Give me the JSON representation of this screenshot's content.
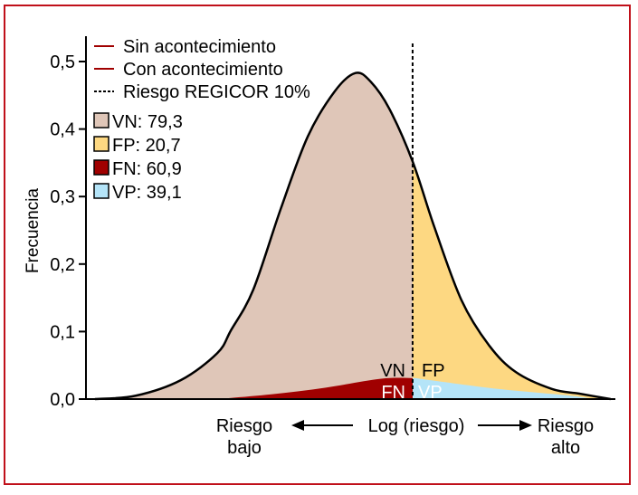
{
  "chart_data": {
    "type": "area",
    "ylabel": "Frecuencia",
    "ylim": [
      0,
      0.5
    ],
    "xlim": [
      0,
      100
    ],
    "yticks": [
      "0,0",
      "0,1",
      "0,2",
      "0,3",
      "0,4",
      "0,5"
    ],
    "ytick_values": [
      0,
      0.1,
      0.2,
      0.3,
      0.4,
      0.5
    ],
    "threshold_x": 61.7,
    "x_axis_labels": {
      "left": [
        "Riesgo",
        "bajo"
      ],
      "center": "Log (riesgo)",
      "right": [
        "Riesgo",
        "alto"
      ]
    },
    "legend_lines": [
      {
        "label": "Sin acontecimiento",
        "style": "solid",
        "color": "#a00000"
      },
      {
        "label": "Con acontecimiento",
        "style": "solid",
        "color": "#a00000"
      },
      {
        "label": "Riesgo REGICOR 10%",
        "style": "dashed",
        "color": "#000000"
      }
    ],
    "legend_areas": [
      {
        "label": "VN: 79,3",
        "color": "#dfc6b8"
      },
      {
        "label": "FP: 20,7",
        "color": "#fdd882"
      },
      {
        "label": "FN: 60,9",
        "color": "#a00000"
      },
      {
        "label": "VP: 39,1",
        "color": "#b4e4f8"
      }
    ],
    "area_labels": {
      "vn": "VN",
      "fp": "FP",
      "fn": "FN",
      "vp": "VP"
    },
    "series": [
      {
        "name": "Sin acontecimiento",
        "x": [
          1.7,
          9.4,
          17.9,
          24.8,
          27.4,
          31.6,
          36.8,
          41.9,
          47,
          50.9,
          53.8,
          57.3,
          61.7,
          65.8,
          70.9,
          76.1,
          81.2,
          88,
          93.2,
          99.1
        ],
        "y": [
          0,
          0.005,
          0.028,
          0.068,
          0.102,
          0.162,
          0.282,
          0.389,
          0.456,
          0.483,
          0.47,
          0.43,
          0.352,
          0.255,
          0.147,
          0.08,
          0.04,
          0.015,
          0.008,
          0
        ]
      },
      {
        "name": "Con acontecimiento",
        "x": [
          24.8,
          35,
          45.3,
          55.6,
          61.7,
          64.1,
          77.8,
          91.5,
          95.7
        ],
        "y": [
          0,
          0.007,
          0.017,
          0.03,
          0.031,
          0.029,
          0.015,
          0.005,
          0
        ]
      }
    ]
  }
}
